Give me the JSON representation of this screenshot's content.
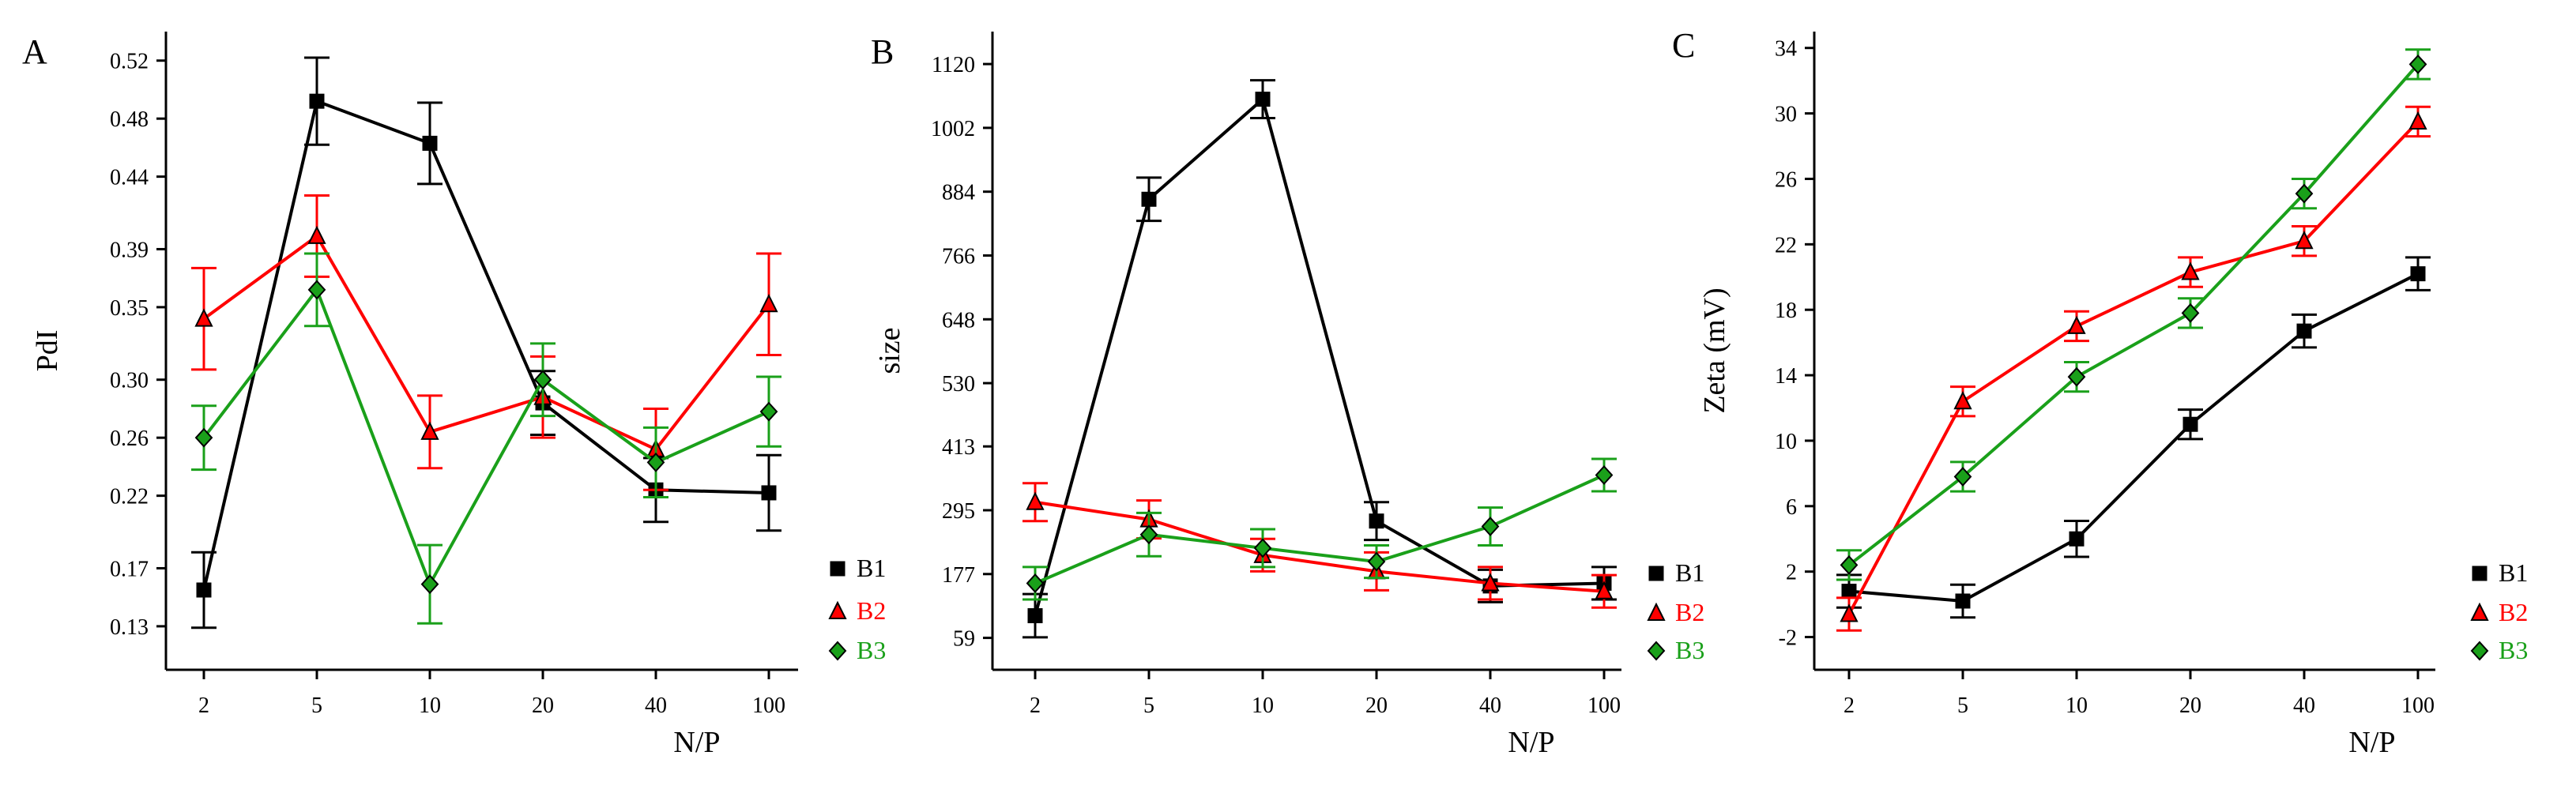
{
  "chart_data": [
    {
      "type": "line",
      "panel_label": "A",
      "title": "",
      "xlabel": "N/P",
      "ylabel": "PdI",
      "categories": [
        "2",
        "5",
        "10",
        "20",
        "40",
        "100"
      ],
      "ylim": [
        0.1,
        0.54
      ],
      "yticks": [
        0.13,
        0.17,
        0.22,
        0.26,
        0.3,
        0.35,
        0.39,
        0.44,
        0.48,
        0.52
      ],
      "ytick_labels": [
        "0.13",
        "0.17",
        "0.22",
        "0.26",
        "0.30",
        "0.35",
        "0.39",
        "0.44",
        "0.48",
        "0.52"
      ],
      "grid": false,
      "legend": "right",
      "series": [
        {
          "name": "B1",
          "color": "#000000",
          "marker": "square",
          "values": [
            0.155,
            0.492,
            0.463,
            0.284,
            0.224,
            0.222
          ],
          "errors": [
            0.026,
            0.03,
            0.028,
            0.022,
            0.022,
            0.026
          ]
        },
        {
          "name": "B2",
          "color": "#ff0000",
          "marker": "triangle",
          "values": [
            0.342,
            0.399,
            0.264,
            0.288,
            0.252,
            0.352
          ],
          "errors": [
            0.035,
            0.028,
            0.025,
            0.028,
            0.028,
            0.035
          ]
        },
        {
          "name": "B3",
          "color": "#1aa01a",
          "marker": "diamond",
          "values": [
            0.26,
            0.362,
            0.159,
            0.3,
            0.243,
            0.278
          ],
          "errors": [
            0.022,
            0.025,
            0.027,
            0.025,
            0.024,
            0.024
          ]
        }
      ]
    },
    {
      "type": "line",
      "panel_label": "B",
      "title": "",
      "xlabel": "N/P",
      "ylabel": "size",
      "categories": [
        "2",
        "5",
        "10",
        "20",
        "40",
        "100"
      ],
      "ylim": [
        0,
        1180
      ],
      "yticks": [
        59,
        177,
        295,
        413,
        530,
        648,
        766,
        884,
        1002,
        1120
      ],
      "ytick_labels": [
        "59",
        "177",
        "295",
        "413",
        "530",
        "648",
        "766",
        "884",
        "1002",
        "1120"
      ],
      "grid": false,
      "legend": "right",
      "series": [
        {
          "name": "B1",
          "color": "#000000",
          "marker": "square",
          "values": [
            100,
            870,
            1055,
            275,
            155,
            160
          ],
          "errors": [
            40,
            40,
            35,
            35,
            30,
            30
          ]
        },
        {
          "name": "B2",
          "color": "#ff0000",
          "marker": "triangle",
          "values": [
            310,
            278,
            212,
            182,
            160,
            145
          ],
          "errors": [
            35,
            35,
            30,
            35,
            30,
            30
          ]
        },
        {
          "name": "B3",
          "color": "#1aa01a",
          "marker": "diamond",
          "values": [
            160,
            250,
            225,
            200,
            265,
            360
          ],
          "errors": [
            30,
            40,
            35,
            30,
            35,
            30
          ]
        }
      ]
    },
    {
      "type": "line",
      "panel_label": "C",
      "title": "",
      "xlabel": "N/P",
      "ylabel": "Zeta (mV)",
      "categories": [
        "2",
        "5",
        "10",
        "20",
        "40",
        "100"
      ],
      "ylim": [
        -4,
        35
      ],
      "yticks": [
        -2,
        2,
        6,
        10,
        14,
        18,
        22,
        26,
        30,
        34
      ],
      "ytick_labels": [
        "-2",
        "2",
        "6",
        "10",
        "14",
        "18",
        "22",
        "26",
        "30",
        "34"
      ],
      "grid": false,
      "legend": "right",
      "series": [
        {
          "name": "B1",
          "color": "#000000",
          "marker": "square",
          "values": [
            0.8,
            0.2,
            4.0,
            11.0,
            16.7,
            20.2
          ],
          "errors": [
            1.0,
            1.0,
            1.1,
            0.9,
            1.0,
            1.0
          ]
        },
        {
          "name": "B2",
          "color": "#ff0000",
          "marker": "triangle",
          "values": [
            -0.6,
            12.4,
            17.0,
            20.3,
            22.2,
            29.5
          ],
          "errors": [
            1.0,
            0.9,
            0.9,
            0.9,
            0.9,
            0.9
          ]
        },
        {
          "name": "B3",
          "color": "#1aa01a",
          "marker": "diamond",
          "values": [
            2.4,
            7.8,
            13.9,
            17.8,
            25.1,
            33.0
          ],
          "errors": [
            0.9,
            0.9,
            0.9,
            0.9,
            0.9,
            0.9
          ]
        }
      ]
    }
  ]
}
